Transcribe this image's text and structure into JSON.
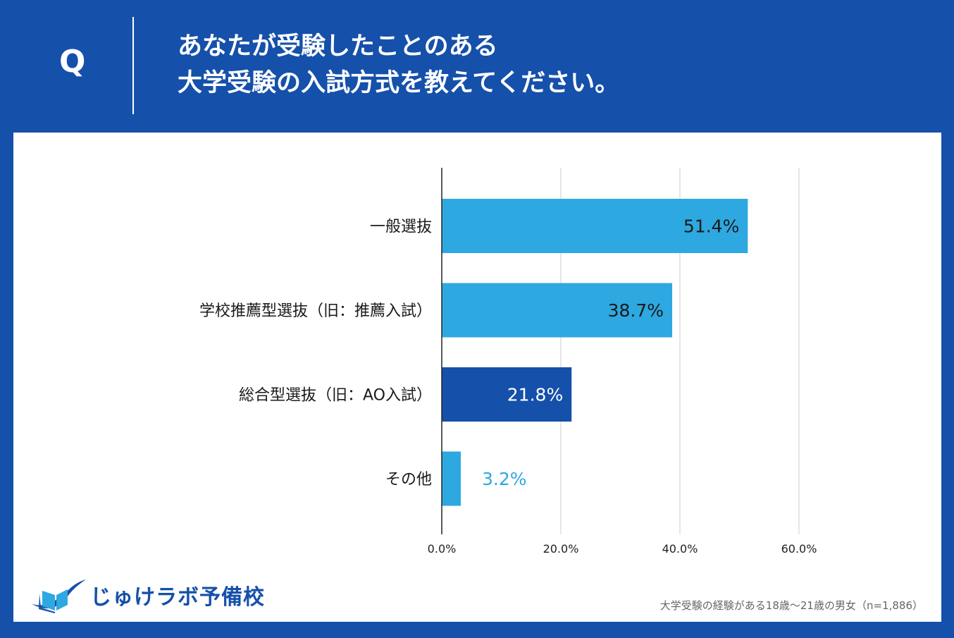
{
  "header": {
    "q_letter": "Q",
    "question_line1": "あなたが受験したことのある",
    "question_line2": "大学受験の入試方式を教えてください。"
  },
  "chart_data": {
    "type": "bar",
    "orientation": "horizontal",
    "categories": [
      "一般選抜",
      "学校推薦型選抜（旧：推薦入試）",
      "総合型選抜（旧：AO入試）",
      "その他"
    ],
    "values": [
      51.4,
      38.7,
      21.8,
      3.2
    ],
    "value_labels": [
      "51.4%",
      "38.7%",
      "21.8%",
      "3.2%"
    ],
    "bar_colors": [
      "#2ea8e0",
      "#2ea8e0",
      "#1550aa",
      "#2ea8e0"
    ],
    "label_colors": [
      "#1a1a1a",
      "#1a1a1a",
      "#ffffff",
      "#2ea8e0"
    ],
    "xlim": [
      0,
      60
    ],
    "x_ticks": [
      0,
      20,
      40,
      60
    ],
    "x_tick_labels": [
      "0.0%",
      "20.0%",
      "40.0%",
      "60.0%"
    ],
    "grid": true
  },
  "logo": {
    "text": "じゅけラボ予備校",
    "icon": "open-book-swoosh-icon",
    "color": "#1550aa"
  },
  "footnote": "大学受験の経験がある18歳〜21歳の男女（n=1,886）"
}
